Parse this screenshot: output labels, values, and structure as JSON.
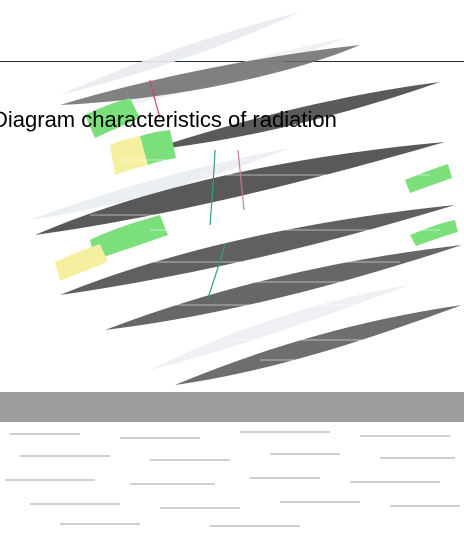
{
  "page": {
    "title": "Diagram characteristics of radiation"
  },
  "colors": {
    "rule": "#1f2a44",
    "stripe_dark": "#5a5a5a",
    "stripe_mid": "#8c8c8c",
    "stripe_light": "#d8dde6",
    "accent_green": "#7be07b",
    "accent_yellow": "#f4f0a0",
    "band_gray": "#9e9e9e"
  }
}
